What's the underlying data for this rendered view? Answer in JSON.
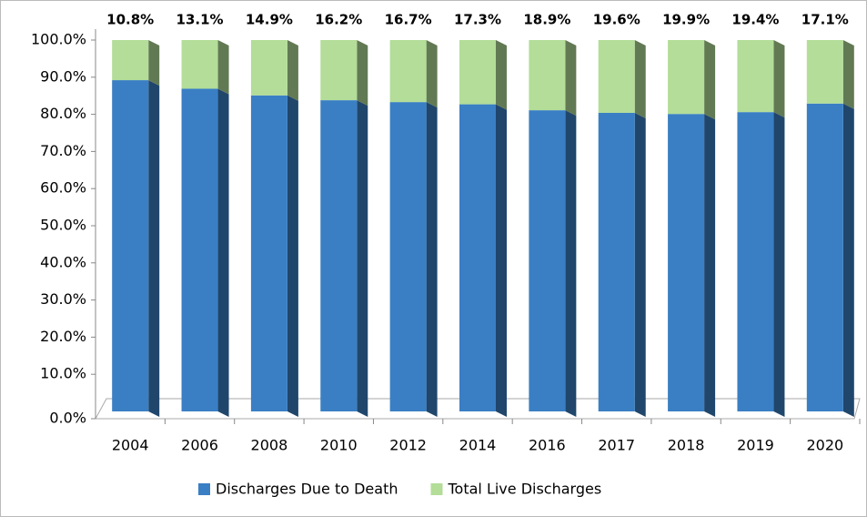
{
  "chart_data": {
    "type": "stacked_bar",
    "categories": [
      "2004",
      "2006",
      "2008",
      "2010",
      "2012",
      "2014",
      "2016",
      "2017",
      "2018",
      "2019",
      "2020"
    ],
    "series": [
      {
        "name": "Discharges Due to Death",
        "color": "#3a7fc4",
        "values": [
          89.2,
          86.9,
          85.1,
          83.8,
          83.3,
          82.7,
          81.1,
          80.4,
          80.1,
          80.6,
          82.9
        ]
      },
      {
        "name": "Total Live Discharges",
        "color": "#b3dd98",
        "values": [
          10.8,
          13.1,
          14.9,
          16.2,
          16.7,
          17.3,
          18.9,
          19.6,
          19.9,
          19.4,
          17.1
        ],
        "value_labels": [
          "10.8%",
          "13.1%",
          "14.9%",
          "16.2%",
          "16.7%",
          "17.3%",
          "18.9%",
          "19.6%",
          "19.9%",
          "19.4%",
          "17.1%"
        ]
      }
    ],
    "ylim": [
      0,
      100
    ],
    "yticks": [
      {
        "value": 0,
        "label": "0.0%"
      },
      {
        "value": 10,
        "label": "10.0%"
      },
      {
        "value": 20,
        "label": "20.0%"
      },
      {
        "value": 30,
        "label": "30.0%"
      },
      {
        "value": 40,
        "label": "40.0%"
      },
      {
        "value": 50,
        "label": "50.0%"
      },
      {
        "value": 60,
        "label": "60.0%"
      },
      {
        "value": 70,
        "label": "70.0%"
      },
      {
        "value": 80,
        "label": "80.0%"
      },
      {
        "value": 90,
        "label": "90.0%"
      },
      {
        "value": 100,
        "label": "100.0%"
      }
    ],
    "legend": "bottom"
  }
}
